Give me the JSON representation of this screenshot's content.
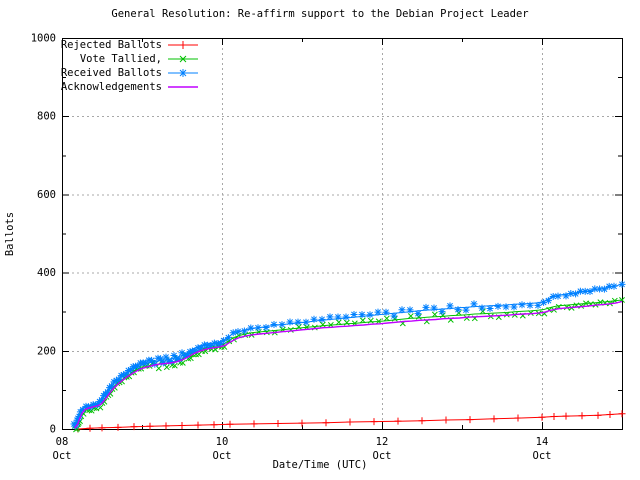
{
  "title": "General Resolution: Re-affirm support to the Debian Project Leader",
  "chart_data": {
    "type": "line",
    "title": "General Resolution: Re-affirm support to the Debian Project Leader",
    "xlabel": "Date/Time (UTC)",
    "ylabel": "Ballots",
    "xlim_days_october": [
      8,
      15
    ],
    "ylim": [
      0,
      1000
    ],
    "grid": true,
    "grid_color": "#a8a8a8",
    "legend_position": "top-left-inside",
    "x_ticks": [
      {
        "value": 8,
        "line1": "08",
        "line2": "Oct"
      },
      {
        "value": 10,
        "line1": "10",
        "line2": "Oct"
      },
      {
        "value": 12,
        "line1": "12",
        "line2": "Oct"
      },
      {
        "value": 14,
        "line1": "14",
        "line2": "Oct"
      }
    ],
    "x_minor_ticks": [
      9,
      11,
      13
    ],
    "y_ticks": [
      {
        "value": 0,
        "label": "0"
      },
      {
        "value": 200,
        "label": "200"
      },
      {
        "value": 400,
        "label": "400"
      },
      {
        "value": 600,
        "label": "600"
      },
      {
        "value": 800,
        "label": "800"
      },
      {
        "value": 1000,
        "label": "1000"
      }
    ],
    "y_minor_ticks": [
      100,
      300,
      500,
      700,
      900
    ],
    "series": [
      {
        "name": "Rejected Ballots",
        "color": "#ff0000",
        "marker": "plus",
        "points": [
          [
            8.2,
            0
          ],
          [
            8.35,
            2
          ],
          [
            8.5,
            3
          ],
          [
            8.7,
            4
          ],
          [
            8.9,
            6
          ],
          [
            9.1,
            7
          ],
          [
            9.3,
            8
          ],
          [
            9.5,
            9
          ],
          [
            9.7,
            10
          ],
          [
            9.9,
            11
          ],
          [
            10.1,
            12
          ],
          [
            10.4,
            13
          ],
          [
            10.7,
            14
          ],
          [
            11.0,
            15
          ],
          [
            11.3,
            16
          ],
          [
            11.6,
            18
          ],
          [
            11.9,
            19
          ],
          [
            12.2,
            20
          ],
          [
            12.5,
            21
          ],
          [
            12.8,
            23
          ],
          [
            13.1,
            24
          ],
          [
            13.4,
            26
          ],
          [
            13.7,
            28
          ],
          [
            14.0,
            30
          ],
          [
            14.15,
            32
          ],
          [
            14.3,
            33
          ],
          [
            14.5,
            34
          ],
          [
            14.7,
            35
          ],
          [
            14.85,
            37
          ],
          [
            15.0,
            39
          ]
        ]
      },
      {
        "name": "Vote Tallied,",
        "color": "#00c000",
        "marker": "cross",
        "points": [
          [
            8.16,
            2
          ],
          [
            8.19,
            12
          ],
          [
            8.21,
            24
          ],
          [
            8.24,
            38
          ],
          [
            8.27,
            47
          ],
          [
            8.31,
            52
          ],
          [
            8.37,
            55
          ],
          [
            8.43,
            58
          ],
          [
            8.48,
            63
          ],
          [
            8.53,
            75
          ],
          [
            8.58,
            89
          ],
          [
            8.63,
            102
          ],
          [
            8.69,
            114
          ],
          [
            8.75,
            124
          ],
          [
            8.81,
            133
          ],
          [
            8.87,
            141
          ],
          [
            8.93,
            148
          ],
          [
            8.99,
            154
          ],
          [
            9.06,
            159
          ],
          [
            9.13,
            163
          ],
          [
            9.21,
            166
          ],
          [
            9.31,
            169
          ],
          [
            9.41,
            173
          ],
          [
            9.51,
            180
          ],
          [
            9.58,
            188
          ],
          [
            9.64,
            196
          ],
          [
            9.71,
            202
          ],
          [
            9.79,
            207
          ],
          [
            9.87,
            210
          ],
          [
            9.96,
            213
          ],
          [
            10.03,
            218
          ],
          [
            10.09,
            227
          ],
          [
            10.15,
            234
          ],
          [
            10.21,
            239
          ],
          [
            10.29,
            243
          ],
          [
            10.37,
            246
          ],
          [
            10.46,
            248
          ],
          [
            10.56,
            250
          ],
          [
            10.66,
            252
          ],
          [
            10.76,
            254
          ],
          [
            10.86,
            256
          ],
          [
            10.96,
            258
          ],
          [
            11.06,
            260
          ],
          [
            11.16,
            262
          ],
          [
            11.26,
            264
          ],
          [
            11.36,
            266
          ],
          [
            11.46,
            267
          ],
          [
            11.56,
            269
          ],
          [
            11.66,
            270
          ],
          [
            11.76,
            272
          ],
          [
            11.86,
            274
          ],
          [
            11.96,
            275
          ],
          [
            12.06,
            277
          ],
          [
            12.16,
            279
          ],
          [
            12.26,
            281
          ],
          [
            12.36,
            283
          ],
          [
            12.46,
            284
          ],
          [
            12.56,
            286
          ],
          [
            12.66,
            287
          ],
          [
            12.76,
            288
          ],
          [
            12.86,
            290
          ],
          [
            12.96,
            291
          ],
          [
            13.06,
            292
          ],
          [
            13.16,
            294
          ],
          [
            13.26,
            295
          ],
          [
            13.36,
            296
          ],
          [
            13.46,
            297
          ],
          [
            13.56,
            298
          ],
          [
            13.66,
            300
          ],
          [
            13.76,
            301
          ],
          [
            13.86,
            302
          ],
          [
            13.96,
            304
          ],
          [
            14.03,
            306
          ],
          [
            14.09,
            310
          ],
          [
            14.15,
            313
          ],
          [
            14.21,
            315
          ],
          [
            14.31,
            317
          ],
          [
            14.43,
            319
          ],
          [
            14.55,
            321
          ],
          [
            14.67,
            323
          ],
          [
            14.79,
            325
          ],
          [
            14.91,
            328
          ],
          [
            15.0,
            330
          ]
        ]
      },
      {
        "name": "Received Ballots",
        "color": "#0080ff",
        "marker": "asterisk",
        "points": [
          [
            8.15,
            6
          ],
          [
            8.18,
            18
          ],
          [
            8.2,
            32
          ],
          [
            8.23,
            46
          ],
          [
            8.26,
            54
          ],
          [
            8.3,
            58
          ],
          [
            8.36,
            61
          ],
          [
            8.42,
            64
          ],
          [
            8.47,
            70
          ],
          [
            8.52,
            83
          ],
          [
            8.57,
            97
          ],
          [
            8.62,
            110
          ],
          [
            8.68,
            122
          ],
          [
            8.74,
            132
          ],
          [
            8.8,
            141
          ],
          [
            8.86,
            149
          ],
          [
            8.92,
            156
          ],
          [
            8.98,
            162
          ],
          [
            9.05,
            167
          ],
          [
            9.12,
            171
          ],
          [
            9.2,
            174
          ],
          [
            9.3,
            177
          ],
          [
            9.4,
            181
          ],
          [
            9.5,
            188
          ],
          [
            9.57,
            196
          ],
          [
            9.63,
            204
          ],
          [
            9.7,
            210
          ],
          [
            9.78,
            215
          ],
          [
            9.86,
            218
          ],
          [
            9.95,
            221
          ],
          [
            10.02,
            226
          ],
          [
            10.08,
            236
          ],
          [
            10.14,
            244
          ],
          [
            10.2,
            249
          ],
          [
            10.28,
            253
          ],
          [
            10.36,
            256
          ],
          [
            10.45,
            259
          ],
          [
            10.55,
            262
          ],
          [
            10.65,
            265
          ],
          [
            10.75,
            267
          ],
          [
            10.85,
            269
          ],
          [
            10.95,
            271
          ],
          [
            11.05,
            273
          ],
          [
            11.15,
            276
          ],
          [
            11.25,
            278
          ],
          [
            11.35,
            280
          ],
          [
            11.45,
            282
          ],
          [
            11.55,
            284
          ],
          [
            11.65,
            286
          ],
          [
            11.75,
            288
          ],
          [
            11.85,
            290
          ],
          [
            11.95,
            292
          ],
          [
            12.05,
            294
          ],
          [
            12.15,
            296
          ],
          [
            12.25,
            298
          ],
          [
            12.35,
            300
          ],
          [
            12.45,
            302
          ],
          [
            12.55,
            304
          ],
          [
            12.65,
            305
          ],
          [
            12.75,
            307
          ],
          [
            12.85,
            308
          ],
          [
            12.95,
            310
          ],
          [
            13.05,
            311
          ],
          [
            13.15,
            313
          ],
          [
            13.25,
            314
          ],
          [
            13.35,
            315
          ],
          [
            13.45,
            316
          ],
          [
            13.55,
            317
          ],
          [
            13.65,
            319
          ],
          [
            13.75,
            320
          ],
          [
            13.85,
            321
          ],
          [
            13.95,
            323
          ],
          [
            14.02,
            326
          ],
          [
            14.08,
            333
          ],
          [
            14.14,
            339
          ],
          [
            14.2,
            342
          ],
          [
            14.3,
            345
          ],
          [
            14.42,
            348
          ],
          [
            14.54,
            352
          ],
          [
            14.66,
            356
          ],
          [
            14.78,
            360
          ],
          [
            14.9,
            365
          ],
          [
            15.0,
            370
          ]
        ]
      },
      {
        "name": "Acknowledgements",
        "color": "#c000ff",
        "marker": "none",
        "points": [
          [
            8.16,
            2
          ],
          [
            8.2,
            14
          ],
          [
            8.22,
            26
          ],
          [
            8.25,
            40
          ],
          [
            8.28,
            48
          ],
          [
            8.32,
            53
          ],
          [
            8.38,
            56
          ],
          [
            8.44,
            59
          ],
          [
            8.49,
            64
          ],
          [
            8.54,
            76
          ],
          [
            8.59,
            90
          ],
          [
            8.64,
            103
          ],
          [
            8.7,
            115
          ],
          [
            8.76,
            125
          ],
          [
            8.82,
            134
          ],
          [
            8.88,
            142
          ],
          [
            8.94,
            149
          ],
          [
            9.0,
            155
          ],
          [
            9.07,
            159
          ],
          [
            9.14,
            163
          ],
          [
            9.22,
            166
          ],
          [
            9.32,
            168
          ],
          [
            9.42,
            171
          ],
          [
            9.52,
            178
          ],
          [
            9.59,
            186
          ],
          [
            9.65,
            193
          ],
          [
            9.72,
            199
          ],
          [
            9.8,
            204
          ],
          [
            9.88,
            207
          ],
          [
            9.97,
            210
          ],
          [
            10.04,
            214
          ],
          [
            10.1,
            222
          ],
          [
            10.16,
            229
          ],
          [
            10.22,
            234
          ],
          [
            10.3,
            238
          ],
          [
            10.38,
            241
          ],
          [
            10.47,
            243
          ],
          [
            10.57,
            245
          ],
          [
            10.67,
            247
          ],
          [
            10.77,
            249
          ],
          [
            10.87,
            251
          ],
          [
            10.97,
            253
          ],
          [
            11.07,
            255
          ],
          [
            11.17,
            257
          ],
          [
            11.27,
            259
          ],
          [
            11.37,
            260
          ],
          [
            11.47,
            262
          ],
          [
            11.57,
            263
          ],
          [
            11.67,
            265
          ],
          [
            11.77,
            266
          ],
          [
            11.87,
            268
          ],
          [
            11.97,
            269
          ],
          [
            12.07,
            271
          ],
          [
            12.17,
            273
          ],
          [
            12.27,
            275
          ],
          [
            12.37,
            276
          ],
          [
            12.47,
            278
          ],
          [
            12.57,
            279
          ],
          [
            12.67,
            280
          ],
          [
            12.77,
            282
          ],
          [
            12.87,
            283
          ],
          [
            12.97,
            284
          ],
          [
            13.07,
            286
          ],
          [
            13.17,
            287
          ],
          [
            13.27,
            288
          ],
          [
            13.37,
            289
          ],
          [
            13.47,
            290
          ],
          [
            13.57,
            291
          ],
          [
            13.67,
            293
          ],
          [
            13.77,
            294
          ],
          [
            13.87,
            295
          ],
          [
            13.97,
            297
          ],
          [
            14.04,
            299
          ],
          [
            14.1,
            303
          ],
          [
            14.16,
            306
          ],
          [
            14.22,
            308
          ],
          [
            14.32,
            310
          ],
          [
            14.44,
            312
          ],
          [
            14.56,
            314
          ],
          [
            14.68,
            317
          ],
          [
            14.8,
            319
          ],
          [
            14.92,
            322
          ],
          [
            15.0,
            326
          ]
        ]
      }
    ]
  }
}
